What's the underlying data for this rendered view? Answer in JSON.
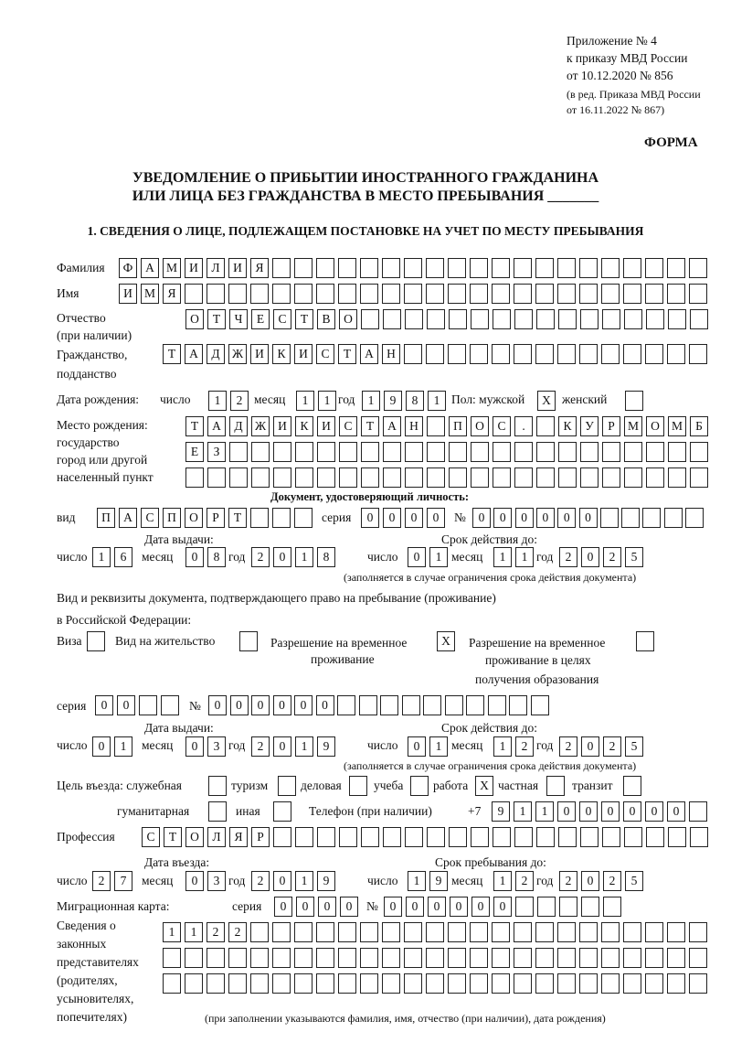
{
  "header": {
    "appendix": "Приложение № 4",
    "order": "к приказу МВД России",
    "order_date": "от 10.12.2020 № 856",
    "revision_1": "(в ред. Приказа МВД России",
    "revision_2": "от 16.11.2022 № 867)",
    "form_label": "ФОРМА",
    "title_1": "УВЕДОМЛЕНИЕ О ПРИБЫТИИ ИНОСТРАННОГО ГРАЖДАНИНА",
    "title_2": "ИЛИ ЛИЦА БЕЗ ГРАЖДАНСТВА В МЕСТО ПРЕБЫВАНИЯ _______",
    "section_1": "1. СВЕДЕНИЯ О ЛИЦЕ, ПОДЛЕЖАЩЕМ ПОСТАНОВКЕ НА УЧЕТ ПО МЕСТУ ПРЕБЫВАНИЯ"
  },
  "labels": {
    "surname": "Фамилия",
    "name": "Имя",
    "patronymic_1": "Отчество",
    "patronymic_2": "(при наличии)",
    "citizenship_1": "Гражданство,",
    "citizenship_2": "подданство",
    "birth_date": "Дата рождения:",
    "day": "число",
    "month": "месяц",
    "year": "год",
    "sex": "Пол: мужской",
    "female": "женский",
    "birth_place_1": "Место рождения:",
    "birth_place_2": "государство",
    "birth_place_3": "город или другой",
    "birth_place_4": "населенный пункт",
    "id_doc": "Документ, удостоверяющий личность:",
    "kind": "вид",
    "series": "серия",
    "number": "№",
    "issue_date": "Дата выдачи:",
    "valid_until": "Срок действия до:",
    "validity_note": "(заполняется в случае ограничения срока действия документа)",
    "stay_doc_1": "Вид и реквизиты документа, подтверждающего право на пребывание (проживание)",
    "stay_doc_2": "в Российской Федерации:",
    "visa": "Виза",
    "residence": "Вид на жительство",
    "temp_res_1": "Разрешение на временное",
    "temp_res_2": "проживание",
    "temp_edu_1": "Разрешение на временное",
    "temp_edu_2": "проживание в целях",
    "temp_edu_3": "получения образования",
    "purpose": "Цель въезда: служебная",
    "tourism": "туризм",
    "business": "деловая",
    "study": "учеба",
    "work": "работа",
    "private": "частная",
    "transit": "транзит",
    "humanitarian": "гуманитарная",
    "other": "иная",
    "phone": "Телефон (при наличии)",
    "phone_prefix": "+7",
    "profession": "Профессия",
    "entry_date": "Дата въезда:",
    "stay_until": "Срок пребывания до:",
    "migration_card": "Миграционная карта:",
    "rep_1": "Сведения о",
    "rep_2": "законных",
    "rep_3": "представителях",
    "rep_4": "(родителях,",
    "rep_5": "усыновителях,",
    "rep_6": "попечителях)",
    "rep_note": "(при заполнении указываются фамилия, имя, отчество (при наличии), дата рождения)"
  },
  "fields": {
    "surname": [
      "Ф",
      "А",
      "М",
      "И",
      "Л",
      "И",
      "Я",
      "",
      "",
      "",
      "",
      "",
      "",
      "",
      "",
      "",
      "",
      "",
      "",
      "",
      "",
      "",
      "",
      "",
      "",
      "",
      ""
    ],
    "name": [
      "И",
      "М",
      "Я",
      "",
      "",
      "",
      "",
      "",
      "",
      "",
      "",
      "",
      "",
      "",
      "",
      "",
      "",
      "",
      "",
      "",
      "",
      "",
      "",
      "",
      "",
      "",
      ""
    ],
    "patronymic": [
      "О",
      "Т",
      "Ч",
      "Е",
      "С",
      "Т",
      "В",
      "О",
      "",
      "",
      "",
      "",
      "",
      "",
      "",
      "",
      "",
      "",
      "",
      "",
      "",
      "",
      "",
      ""
    ],
    "citizenship": [
      "Т",
      "А",
      "Д",
      "Ж",
      "И",
      "К",
      "И",
      "С",
      "Т",
      "А",
      "Н",
      "",
      "",
      "",
      "",
      "",
      "",
      "",
      "",
      "",
      "",
      "",
      "",
      "",
      ""
    ],
    "birth_day": [
      "1",
      "2"
    ],
    "birth_month": [
      "1",
      "1"
    ],
    "birth_year": [
      "1",
      "9",
      "8",
      "1"
    ],
    "sex_male": [
      "X"
    ],
    "sex_female": [
      ""
    ],
    "birth_place_1": [
      "Т",
      "А",
      "Д",
      "Ж",
      "И",
      "К",
      "И",
      "С",
      "Т",
      "А",
      "Н",
      "",
      "П",
      "О",
      "С",
      ".",
      "",
      "К",
      "У",
      "Р",
      "М",
      "О",
      "М",
      "Б"
    ],
    "birth_place_2": [
      "Е",
      "З",
      "",
      "",
      "",
      "",
      "",
      "",
      "",
      "",
      "",
      "",
      "",
      "",
      "",
      "",
      "",
      "",
      "",
      "",
      "",
      "",
      "",
      ""
    ],
    "birth_place_3": [
      "",
      "",
      "",
      "",
      "",
      "",
      "",
      "",
      "",
      "",
      "",
      "",
      "",
      "",
      "",
      "",
      "",
      "",
      "",
      "",
      "",
      "",
      "",
      ""
    ],
    "id_kind": [
      "П",
      "А",
      "С",
      "П",
      "О",
      "Р",
      "Т",
      "",
      "",
      ""
    ],
    "id_series": [
      "0",
      "0",
      "0",
      "0"
    ],
    "id_number": [
      "0",
      "0",
      "0",
      "0",
      "0",
      "0",
      "",
      "",
      "",
      "",
      ""
    ],
    "id_issue_day": [
      "1",
      "6"
    ],
    "id_issue_month": [
      "0",
      "8"
    ],
    "id_issue_year": [
      "2",
      "0",
      "1",
      "8"
    ],
    "id_valid_day": [
      "0",
      "1"
    ],
    "id_valid_month": [
      "1",
      "1"
    ],
    "id_valid_year": [
      "2",
      "0",
      "2",
      "5"
    ],
    "visa": [
      ""
    ],
    "residence": [
      ""
    ],
    "temp_res": [
      "X"
    ],
    "temp_edu": [
      ""
    ],
    "stay_series": [
      "0",
      "0",
      "",
      ""
    ],
    "stay_number": [
      "0",
      "0",
      "0",
      "0",
      "0",
      "0",
      "",
      "",
      "",
      "",
      "",
      "",
      "",
      "",
      "",
      ""
    ],
    "stay_issue_day": [
      "0",
      "1"
    ],
    "stay_issue_month": [
      "0",
      "3"
    ],
    "stay_issue_year": [
      "2",
      "0",
      "1",
      "9"
    ],
    "stay_valid_day": [
      "0",
      "1"
    ],
    "stay_valid_month": [
      "1",
      "2"
    ],
    "stay_valid_year": [
      "2",
      "0",
      "2",
      "5"
    ],
    "p_official": [
      ""
    ],
    "p_tourism": [
      ""
    ],
    "p_business": [
      ""
    ],
    "p_study": [
      ""
    ],
    "p_work": [
      "X"
    ],
    "p_private": [
      ""
    ],
    "p_transit": [
      ""
    ],
    "p_humanitarian": [
      ""
    ],
    "p_other": [
      ""
    ],
    "phone": [
      "9",
      "1",
      "1",
      "0",
      "0",
      "0",
      "0",
      "0",
      "0",
      ""
    ],
    "profession": [
      "С",
      "Т",
      "О",
      "Л",
      "Я",
      "Р",
      "",
      "",
      "",
      "",
      "",
      "",
      "",
      "",
      "",
      "",
      "",
      "",
      "",
      "",
      "",
      "",
      "",
      "",
      "",
      ""
    ],
    "entry_day": [
      "2",
      "7"
    ],
    "entry_month": [
      "0",
      "3"
    ],
    "entry_year": [
      "2",
      "0",
      "1",
      "9"
    ],
    "until_day": [
      "1",
      "9"
    ],
    "until_month": [
      "1",
      "2"
    ],
    "until_year": [
      "2",
      "0",
      "2",
      "5"
    ],
    "mc_series": [
      "0",
      "0",
      "0",
      "0"
    ],
    "mc_number": [
      "0",
      "0",
      "0",
      "0",
      "0",
      "0",
      "",
      "",
      "",
      "",
      ""
    ],
    "rep_1": [
      "1",
      "1",
      "2",
      "2",
      "",
      "",
      "",
      "",
      "",
      "",
      "",
      "",
      "",
      "",
      "",
      "",
      "",
      "",
      "",
      "",
      "",
      "",
      "",
      "",
      ""
    ],
    "rep_2": [
      "",
      "",
      "",
      "",
      "",
      "",
      "",
      "",
      "",
      "",
      "",
      "",
      "",
      "",
      "",
      "",
      "",
      "",
      "",
      "",
      "",
      "",
      "",
      "",
      ""
    ],
    "rep_3": [
      "",
      "",
      "",
      "",
      "",
      "",
      "",
      "",
      "",
      "",
      "",
      "",
      "",
      "",
      "",
      "",
      "",
      "",
      "",
      "",
      "",
      "",
      "",
      "",
      ""
    ]
  }
}
